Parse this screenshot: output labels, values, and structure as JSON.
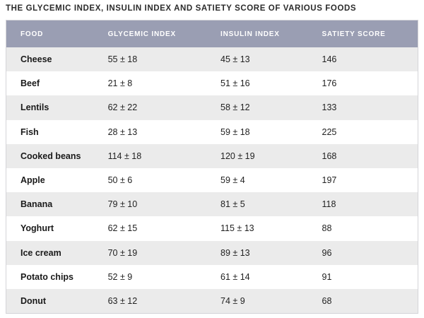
{
  "title": "THE GLYCEMIC INDEX, INSULIN INDEX AND SATIETY SCORE OF VARIOUS FOODS",
  "table": {
    "headers": {
      "food": "FOOD",
      "glycemic_index": "GLYCEMIC INDEX",
      "insulin_index": "INSULIN INDEX",
      "satiety_score": "SATIETY SCORE"
    },
    "rows": [
      {
        "food": "Cheese",
        "glycemic_index": "55 ± 18",
        "insulin_index": "45 ± 13",
        "satiety_score": "146"
      },
      {
        "food": "Beef",
        "glycemic_index": "21 ± 8",
        "insulin_index": "51 ± 16",
        "satiety_score": "176"
      },
      {
        "food": "Lentils",
        "glycemic_index": "62 ± 22",
        "insulin_index": "58 ± 12",
        "satiety_score": "133"
      },
      {
        "food": "Fish",
        "glycemic_index": "28 ± 13",
        "insulin_index": "59 ± 18",
        "satiety_score": "225"
      },
      {
        "food": "Cooked beans",
        "glycemic_index": "114 ± 18",
        "insulin_index": "120 ± 19",
        "satiety_score": "168"
      },
      {
        "food": "Apple",
        "glycemic_index": "50 ± 6",
        "insulin_index": "59 ± 4",
        "satiety_score": "197"
      },
      {
        "food": "Banana",
        "glycemic_index": "79 ± 10",
        "insulin_index": "81 ± 5",
        "satiety_score": "118"
      },
      {
        "food": "Yoghurt",
        "glycemic_index": "62 ± 15",
        "insulin_index": "115 ± 13",
        "satiety_score": "88"
      },
      {
        "food": "Ice cream",
        "glycemic_index": "70 ± 19",
        "insulin_index": "89 ± 13",
        "satiety_score": "96"
      },
      {
        "food": "Potato chips",
        "glycemic_index": "52 ± 9",
        "insulin_index": "61 ± 14",
        "satiety_score": "91"
      },
      {
        "food": "Donut",
        "glycemic_index": "63 ± 12",
        "insulin_index": "74 ± 9",
        "satiety_score": "68"
      }
    ]
  },
  "colors": {
    "header_bg": "#9a9eb3",
    "header_text": "#ffffff",
    "row_alt_bg": "#ebebeb"
  }
}
